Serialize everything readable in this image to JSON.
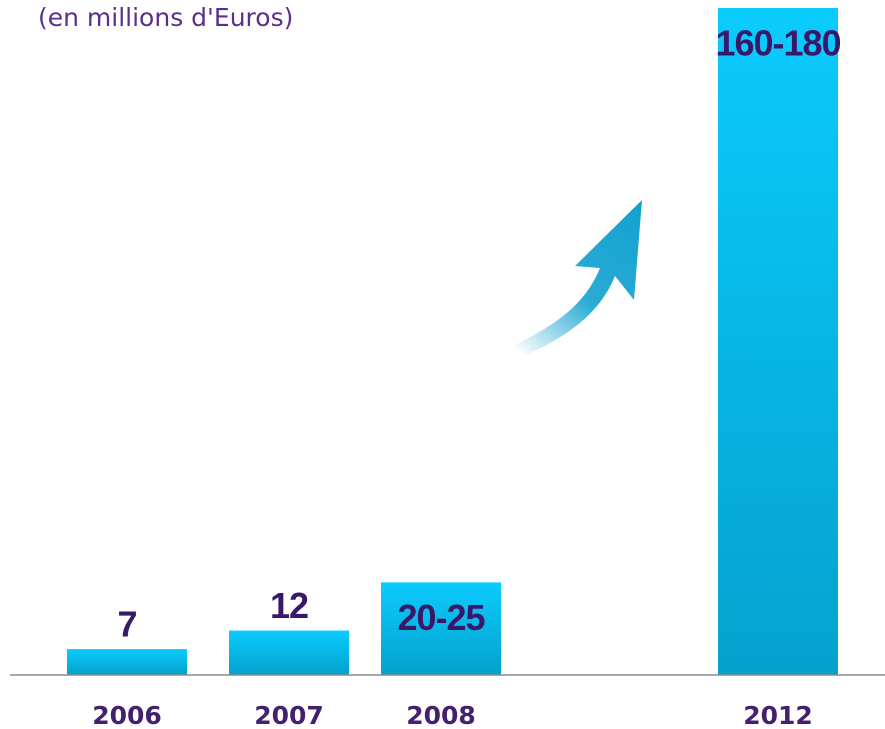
{
  "chart_data": {
    "type": "bar",
    "subtitle": "(en millions d'Euros)",
    "categories": [
      "2006",
      "2007",
      "2008",
      "2012"
    ],
    "values_low": [
      7,
      12,
      20,
      160
    ],
    "values": [
      7,
      12,
      25,
      180
    ],
    "value_labels": [
      "7",
      "12",
      "20-25",
      "160-180"
    ],
    "color": "#0bc8fb",
    "ylim": [
      0,
      180
    ]
  }
}
